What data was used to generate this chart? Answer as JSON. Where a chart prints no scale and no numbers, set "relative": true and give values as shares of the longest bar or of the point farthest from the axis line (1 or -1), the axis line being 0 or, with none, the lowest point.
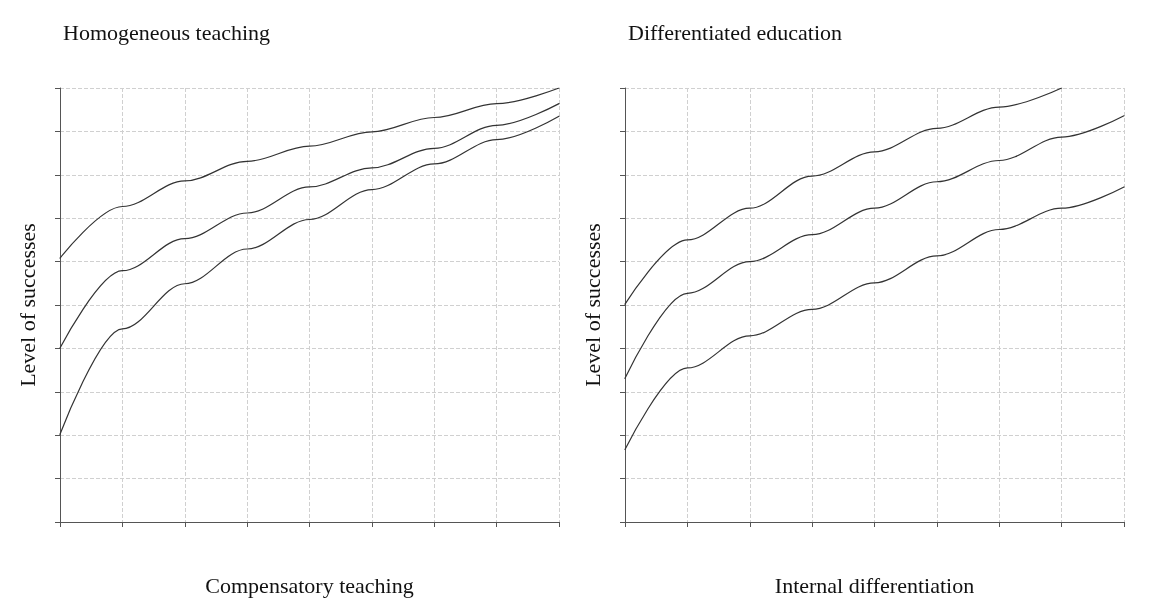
{
  "chart_data": [
    {
      "type": "line",
      "title": "Homogeneous teaching",
      "xlabel": "Compensatory teaching",
      "ylabel": "Level of successes",
      "relative": true,
      "grid": true,
      "categories": [
        null,
        null,
        null,
        null,
        null,
        null,
        null,
        null,
        null
      ],
      "series": [
        {
          "color": "#333333",
          "values": [
            0.608,
            0.727,
            0.786,
            0.831,
            0.866,
            0.899,
            0.932,
            0.964,
            1
          ]
        },
        {
          "color": "#333333",
          "values": [
            0.401,
            0.579,
            0.653,
            0.712,
            0.772,
            0.816,
            0.861,
            0.914,
            0.964
          ]
        },
        {
          "color": "#333333",
          "values": [
            0.202,
            0.445,
            0.549,
            0.629,
            0.697,
            0.766,
            0.825,
            0.881,
            0.935
          ]
        }
      ]
    },
    {
      "type": "line",
      "title": "Differentiated education",
      "xlabel": "Internal differentiation",
      "ylabel": "Level of successes",
      "relative": true,
      "grid": true,
      "categories": [
        null,
        null,
        null,
        null,
        null,
        null,
        null,
        null,
        null
      ],
      "series": [
        {
          "color": "#333333",
          "values": [
            0.502,
            0.65,
            0.723,
            0.797,
            0.853,
            0.907,
            0.956,
            1,
            null
          ]
        },
        {
          "color": "#333333",
          "values": [
            0.331,
            0.527,
            0.6,
            0.662,
            0.723,
            0.784,
            0.833,
            0.887,
            0.936
          ]
        },
        {
          "color": "#333333",
          "values": [
            0.167,
            0.355,
            0.429,
            0.49,
            0.551,
            0.613,
            0.674,
            0.723,
            0.772
          ]
        }
      ]
    }
  ]
}
